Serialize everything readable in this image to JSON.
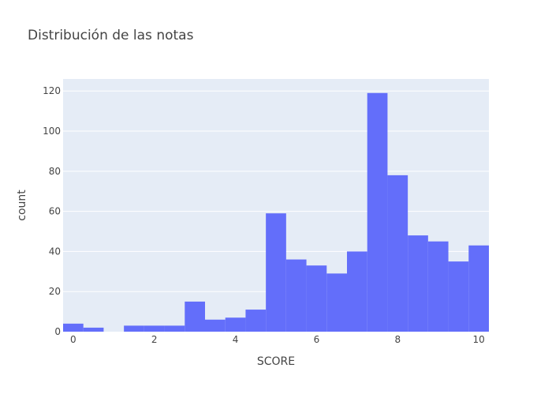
{
  "chart_data": {
    "type": "bar",
    "title": "Distribución de las notas",
    "xlabel": "SCORE",
    "ylabel": "count",
    "xlim": [
      -0.25,
      10.25
    ],
    "ylim": [
      0,
      126
    ],
    "xticks": [
      0,
      2,
      4,
      6,
      8,
      10
    ],
    "yticks": [
      0,
      20,
      40,
      60,
      80,
      100,
      120
    ],
    "bin_width": 0.5,
    "bins": [
      {
        "x0": -0.25,
        "x1": 0.25,
        "value": 4
      },
      {
        "x0": 0.25,
        "x1": 0.75,
        "value": 2
      },
      {
        "x0": 0.75,
        "x1": 1.25,
        "value": 0
      },
      {
        "x0": 1.25,
        "x1": 1.75,
        "value": 3
      },
      {
        "x0": 1.75,
        "x1": 2.25,
        "value": 3
      },
      {
        "x0": 2.25,
        "x1": 2.75,
        "value": 3
      },
      {
        "x0": 2.75,
        "x1": 3.25,
        "value": 15
      },
      {
        "x0": 3.25,
        "x1": 3.75,
        "value": 6
      },
      {
        "x0": 3.75,
        "x1": 4.25,
        "value": 7
      },
      {
        "x0": 4.25,
        "x1": 4.75,
        "value": 11
      },
      {
        "x0": 4.75,
        "x1": 5.25,
        "value": 59
      },
      {
        "x0": 5.25,
        "x1": 5.75,
        "value": 36
      },
      {
        "x0": 5.75,
        "x1": 6.25,
        "value": 33
      },
      {
        "x0": 6.25,
        "x1": 6.75,
        "value": 29
      },
      {
        "x0": 6.75,
        "x1": 7.25,
        "value": 40
      },
      {
        "x0": 7.25,
        "x1": 7.75,
        "value": 119
      },
      {
        "x0": 7.75,
        "x1": 8.25,
        "value": 78
      },
      {
        "x0": 8.25,
        "x1": 8.75,
        "value": 48
      },
      {
        "x0": 8.75,
        "x1": 9.25,
        "value": 45
      },
      {
        "x0": 9.25,
        "x1": 9.75,
        "value": 35
      },
      {
        "x0": 9.75,
        "x1": 10.25,
        "value": 43
      }
    ],
    "grid": true,
    "colors": {
      "bar": "#636efa",
      "plot_background": "#e5ecf6",
      "gridline": "#ffffff",
      "text": "#444444"
    }
  }
}
